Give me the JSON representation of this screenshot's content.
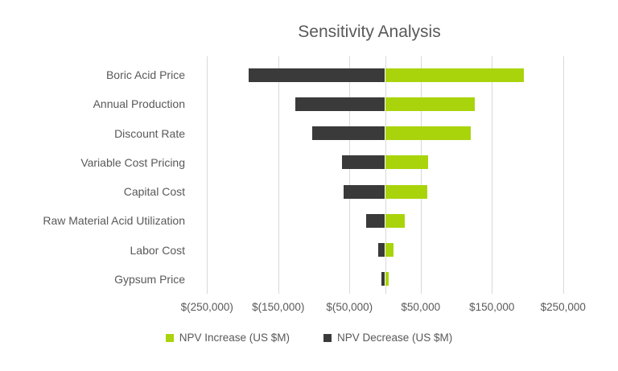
{
  "chart_data": {
    "type": "bar",
    "subtype": "tornado",
    "orientation": "horizontal",
    "title": "Sensitivity Analysis",
    "categories": [
      "Boric Acid Price",
      "Annual Production",
      "Discount Rate",
      "Variable Cost Pricing",
      "Capital Cost",
      "Raw Material Acid Utilization",
      "Labor Cost",
      "Gypsum Price"
    ],
    "series": [
      {
        "name": "NPV Increase (US $M)",
        "color": "#A9D40B",
        "values": [
          195000,
          126000,
          120000,
          61000,
          59000,
          28000,
          12000,
          5000
        ]
      },
      {
        "name": "NPV Decrease (US $M)",
        "color": "#3A3A3A",
        "values": [
          -192000,
          -126000,
          -102000,
          -60000,
          -58000,
          -26000,
          -10000,
          -5000
        ]
      }
    ],
    "x_axis": {
      "min": -270000,
      "max": 327000,
      "tick_step": 100000,
      "gridlines": true,
      "zero_axis_line": true,
      "ticks": [
        {
          "value": -250000,
          "label": "$(250,000)"
        },
        {
          "value": -150000,
          "label": "$(150,000)"
        },
        {
          "value": -50000,
          "label": "$(50,000)"
        },
        {
          "value": 50000,
          "label": "$50,000"
        },
        {
          "value": 150000,
          "label": "$150,000"
        },
        {
          "value": 250000,
          "label": "$250,000"
        }
      ]
    },
    "legend": {
      "position": "bottom",
      "entries": [
        "NPV Increase (US $M)",
        "NPV Decrease (US $M)"
      ]
    },
    "colors": {
      "grid": "#D9D9D9",
      "text": "#595959",
      "background": "#FFFFFF"
    }
  }
}
